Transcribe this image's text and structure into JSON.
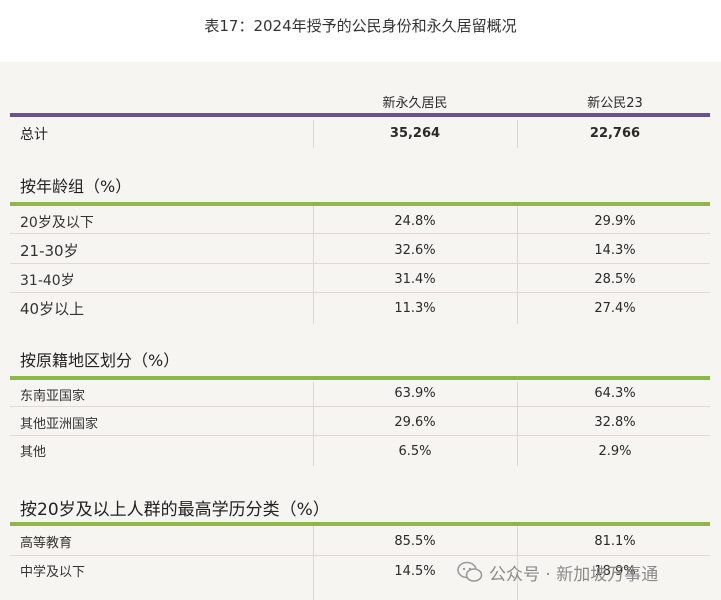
{
  "title": "表17：2024年授予的公民身份和永久居留概况",
  "columns": [
    "新永久居民",
    "新公民23"
  ],
  "total": {
    "label": "总计",
    "values": [
      "35,264",
      "22,766"
    ]
  },
  "sections": [
    {
      "heading": "按年龄组（%）",
      "rows": [
        {
          "label": "20岁及以下",
          "values": [
            "24.8%",
            "29.9%"
          ]
        },
        {
          "label": "21-30岁",
          "values": [
            "32.6%",
            "14.3%"
          ]
        },
        {
          "label": "31-40岁",
          "values": [
            "31.4%",
            "28.5%"
          ]
        },
        {
          "label": "40岁以上",
          "values": [
            "11.3%",
            "27.4%"
          ]
        }
      ]
    },
    {
      "heading": "按原籍地区划分（%）",
      "rows": [
        {
          "label": "东南亚国家",
          "values": [
            "63.9%",
            "64.3%"
          ]
        },
        {
          "label": "其他亚洲国家",
          "values": [
            "29.6%",
            "32.8%"
          ]
        },
        {
          "label": "其他",
          "values": [
            "6.5%",
            "2.9%"
          ]
        }
      ]
    },
    {
      "heading": "按20岁及以上人群的最高学历分类（%）",
      "rows": [
        {
          "label": "高等教育",
          "values": [
            "85.5%",
            "81.1%"
          ]
        },
        {
          "label": "中学及以下",
          "values": [
            "14.5%",
            "18.9%"
          ]
        }
      ]
    }
  ],
  "watermark": "公众号 · 新加坡万事通",
  "colors": {
    "purple": "#6b4e94",
    "green": "#8cb84a",
    "panel": "#f7f5f2"
  }
}
